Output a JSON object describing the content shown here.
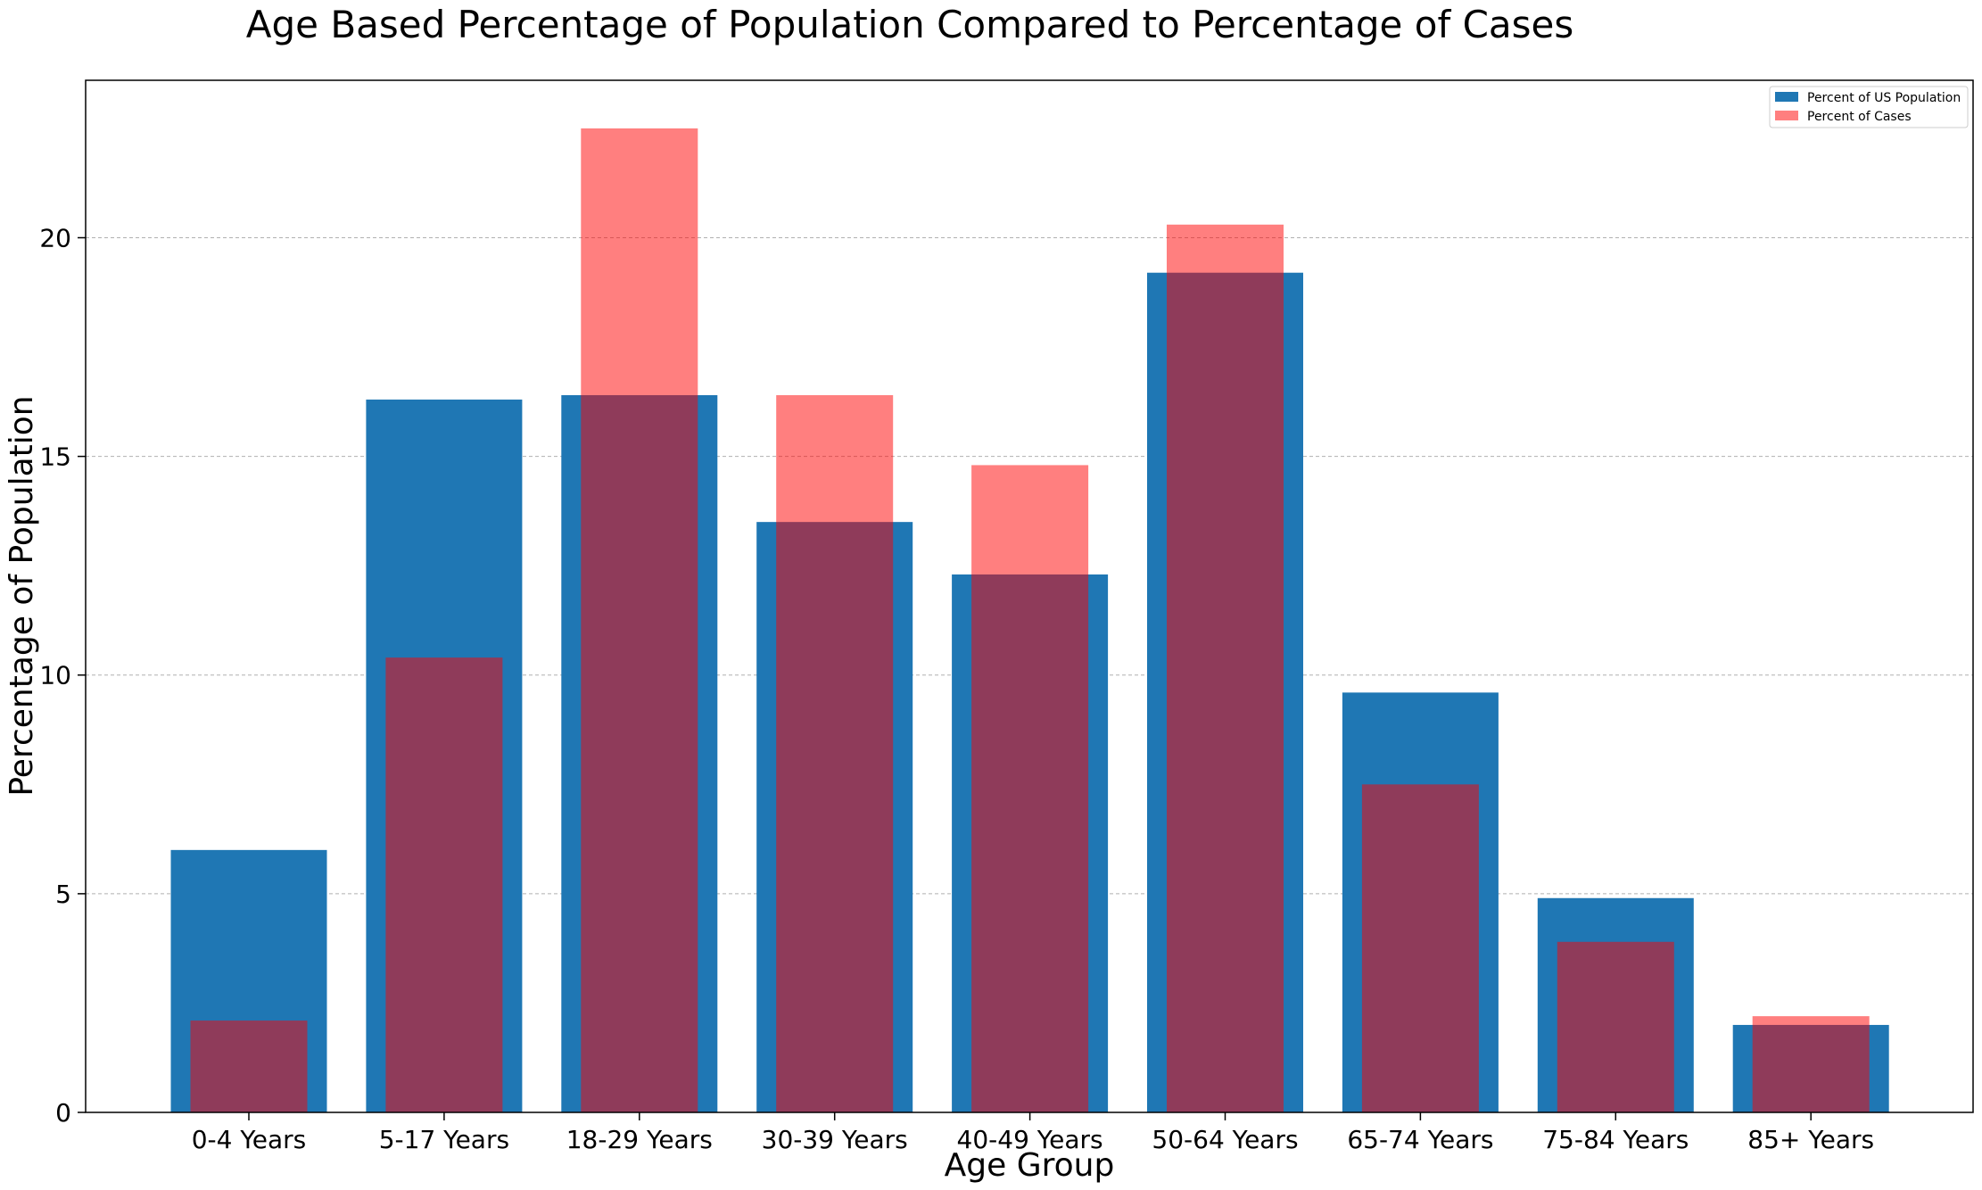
{
  "chart_data": {
    "type": "bar",
    "title": "Age Based Percentage of Population Compared to Percentage of Cases",
    "xlabel": "Age Group",
    "ylabel": "Percentage of Population",
    "categories": [
      "0-4 Years",
      "5-17 Years",
      "18-29 Years",
      "30-39 Years",
      "40-49 Years",
      "50-64 Years",
      "65-74 Years",
      "75-84 Years",
      "85+ Years"
    ],
    "series": [
      {
        "name": "Percent of US Population",
        "color": "#1f77b4",
        "values": [
          6.0,
          16.3,
          16.4,
          13.5,
          12.3,
          19.2,
          9.6,
          4.9,
          2.0
        ]
      },
      {
        "name": "Percent of Cases",
        "color": "#ff0000",
        "opacity": 0.5,
        "values": [
          2.1,
          10.4,
          22.5,
          16.4,
          14.8,
          20.3,
          7.5,
          3.9,
          2.2
        ]
      }
    ],
    "ylim": [
      0,
      23.6
    ],
    "yticks": [
      0,
      5,
      10,
      15,
      20
    ],
    "grid": "y-dashed",
    "legend_position": "top-right"
  }
}
